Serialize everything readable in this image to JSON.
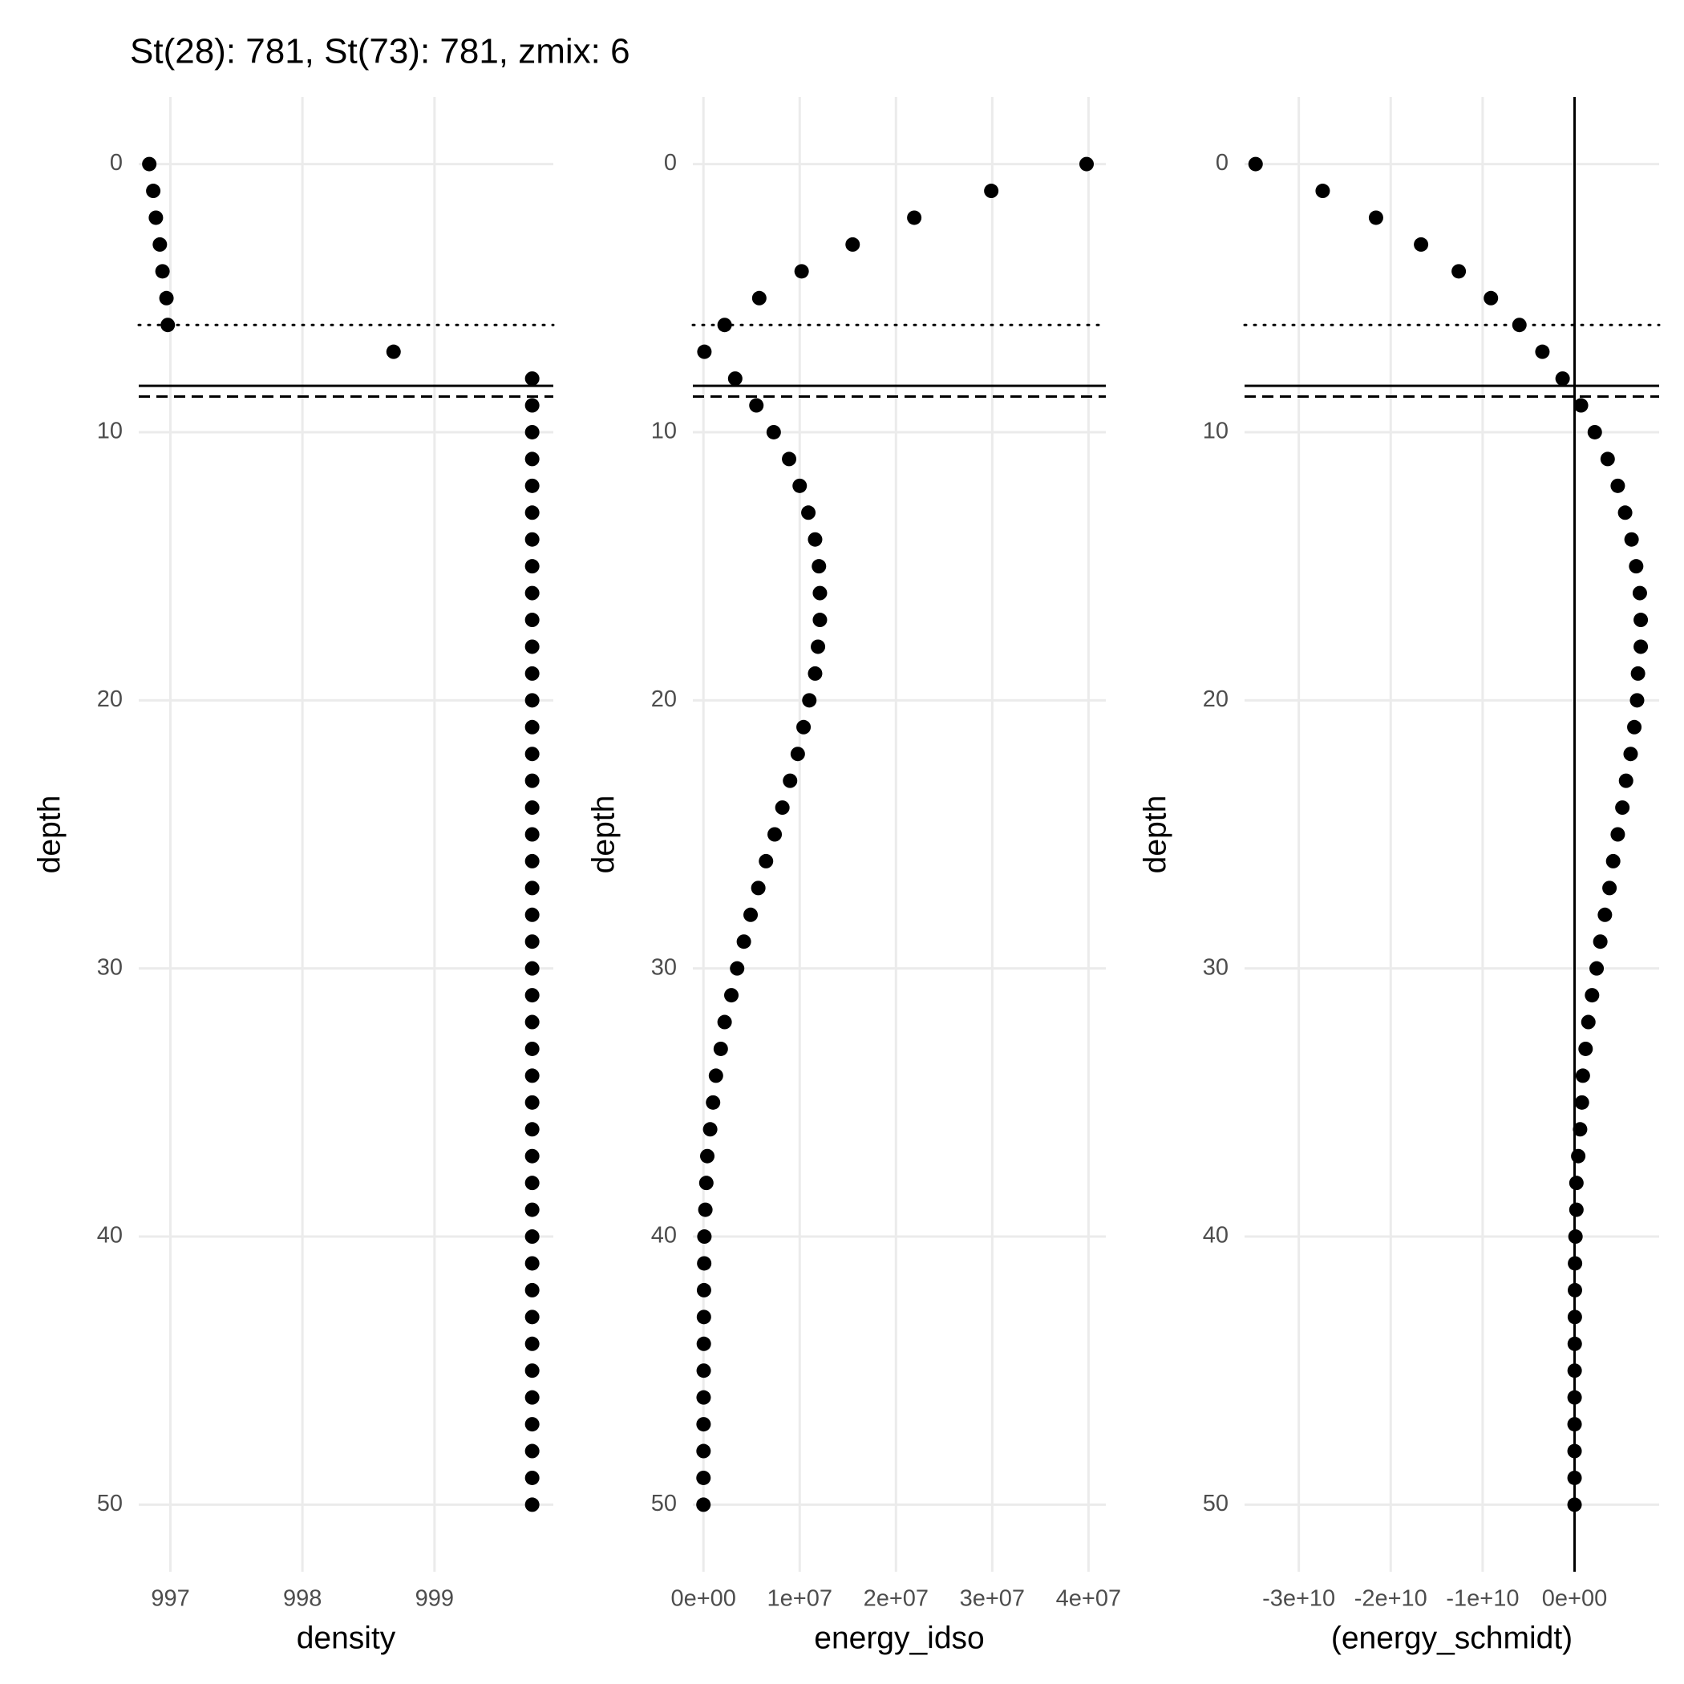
{
  "chart_data": [
    {
      "type": "scatter",
      "title": "St(28): 781, St(73): 781, zmix: 6",
      "x_label": "density",
      "y_label": "depth",
      "color": "#000000",
      "grid": true,
      "x": [
        996.84,
        996.87,
        996.89,
        996.92,
        996.94,
        996.97,
        996.98,
        998.69,
        999.74,
        999.74,
        999.74,
        999.74,
        999.74,
        999.74,
        999.74,
        999.74,
        999.74,
        999.74,
        999.74,
        999.74,
        999.74,
        999.74,
        999.74,
        999.74,
        999.74,
        999.74,
        999.74,
        999.74,
        999.74,
        999.74,
        999.74,
        999.74,
        999.74,
        999.74,
        999.74,
        999.74,
        999.74,
        999.74,
        999.74,
        999.74,
        999.74,
        999.74,
        999.74,
        999.74,
        999.74,
        999.74,
        999.74,
        999.74,
        999.74,
        999.74,
        999.74
      ],
      "y": [
        0,
        1,
        2,
        3,
        4,
        5,
        6,
        7,
        8,
        9,
        10,
        11,
        12,
        13,
        14,
        15,
        16,
        17,
        18,
        19,
        20,
        21,
        22,
        23,
        24,
        25,
        26,
        27,
        28,
        29,
        30,
        31,
        32,
        33,
        34,
        35,
        36,
        37,
        38,
        39,
        40,
        41,
        42,
        43,
        44,
        45,
        46,
        47,
        48,
        49,
        50
      ],
      "xlim": [
        996.76,
        999.9
      ],
      "xticks": [
        997,
        998,
        999
      ],
      "ylim": [
        -2.5,
        52.5
      ],
      "y_reversed": true,
      "yticks": [
        0,
        10,
        20,
        30,
        40,
        50
      ],
      "hlines": [
        {
          "value": 6,
          "style": "dotted"
        },
        {
          "value": 8.27,
          "style": "solid"
        },
        {
          "value": 8.67,
          "style": "dashed"
        }
      ]
    },
    {
      "type": "scatter",
      "x_label": "energy_idso",
      "y_label": "depth",
      "color": "#000000",
      "grid": true,
      "x": [
        39800000,
        29900000,
        21900000,
        15500000,
        10200000,
        5800000,
        2200000,
        100000,
        3300000,
        5500000,
        7300000,
        8900000,
        10000000,
        10900000,
        11600000,
        12000000,
        12100000,
        12100000,
        11900000,
        11600000,
        11000000,
        10400000,
        9800000,
        9000000,
        8200000,
        7400000,
        6500000,
        5700000,
        4900000,
        4200000,
        3500000,
        2900000,
        2200000,
        1800000,
        1300000,
        1000000,
        700000,
        400000,
        300000,
        200000,
        100000,
        80000,
        60000,
        50000,
        40000,
        30000,
        20000,
        15000,
        10000,
        5000,
        0
      ],
      "y": [
        0,
        1,
        2,
        3,
        4,
        5,
        6,
        7,
        8,
        9,
        10,
        11,
        12,
        13,
        14,
        15,
        16,
        17,
        18,
        19,
        20,
        21,
        22,
        23,
        24,
        25,
        26,
        27,
        28,
        29,
        30,
        31,
        32,
        33,
        34,
        35,
        36,
        37,
        38,
        39,
        40,
        41,
        42,
        43,
        44,
        45,
        46,
        47,
        48,
        49,
        50
      ],
      "xlim": [
        -1100000,
        41800000
      ],
      "xticks": [
        {
          "value": 0,
          "label": "0e+00"
        },
        {
          "value": 10000000,
          "label": "1e+07"
        },
        {
          "value": 20000000,
          "label": "2e+07"
        },
        {
          "value": 30000000,
          "label": "3e+07"
        },
        {
          "value": 40000000,
          "label": "4e+07"
        }
      ],
      "ylim": [
        -2.5,
        52.5
      ],
      "y_reversed": true,
      "yticks": [
        0,
        10,
        20,
        30,
        40,
        50
      ],
      "hlines": [
        {
          "value": 6,
          "style": "dotted"
        },
        {
          "value": 8.27,
          "style": "solid"
        },
        {
          "value": 8.67,
          "style": "dashed"
        }
      ]
    },
    {
      "type": "scatter",
      "x_label": "(energy_schmidt)",
      "y_label": "depth",
      "color": "#000000",
      "grid": true,
      "x": [
        -34700000000,
        -27400000000,
        -21600000000,
        -16700000000,
        -12600000000,
        -9100000000,
        -6000000000,
        -3500000000,
        -1300000000,
        700000000,
        2200000000,
        3600000000,
        4700000000,
        5500000000,
        6200000000,
        6700000000,
        7100000000,
        7200000000,
        7200000000,
        6900000000,
        6800000000,
        6500000000,
        6100000000,
        5600000000,
        5200000000,
        4700000000,
        4200000000,
        3800000000,
        3300000000,
        2800000000,
        2400000000,
        1900000000,
        1500000000,
        1200000000,
        900000000,
        800000000,
        600000000,
        400000000,
        200000000,
        200000000,
        100000000,
        50000000,
        40000000,
        30000000,
        20000000,
        10000000,
        5000000,
        2000000,
        1000000,
        500000,
        0
      ],
      "y": [
        0,
        1,
        2,
        3,
        4,
        5,
        6,
        7,
        8,
        9,
        10,
        11,
        12,
        13,
        14,
        15,
        16,
        17,
        18,
        19,
        20,
        21,
        22,
        23,
        24,
        25,
        26,
        27,
        28,
        29,
        30,
        31,
        32,
        33,
        34,
        35,
        36,
        37,
        38,
        39,
        40,
        41,
        42,
        43,
        44,
        45,
        46,
        47,
        48,
        49,
        50
      ],
      "xlim": [
        -35900000000,
        9200000000
      ],
      "xticks": [
        {
          "value": -30000000000,
          "label": "-3e+10"
        },
        {
          "value": -20000000000,
          "label": "-2e+10"
        },
        {
          "value": -10000000000,
          "label": "-1e+10"
        },
        {
          "value": 0,
          "label": "0e+00"
        }
      ],
      "ylim": [
        -2.5,
        52.5
      ],
      "y_reversed": true,
      "yticks": [
        0,
        10,
        20,
        30,
        40,
        50
      ],
      "hlines": [
        {
          "value": 6,
          "style": "dotted"
        },
        {
          "value": 8.27,
          "style": "solid"
        },
        {
          "value": 8.67,
          "style": "dashed"
        }
      ],
      "vlines": [
        {
          "value": 0,
          "style": "solid"
        }
      ]
    }
  ]
}
